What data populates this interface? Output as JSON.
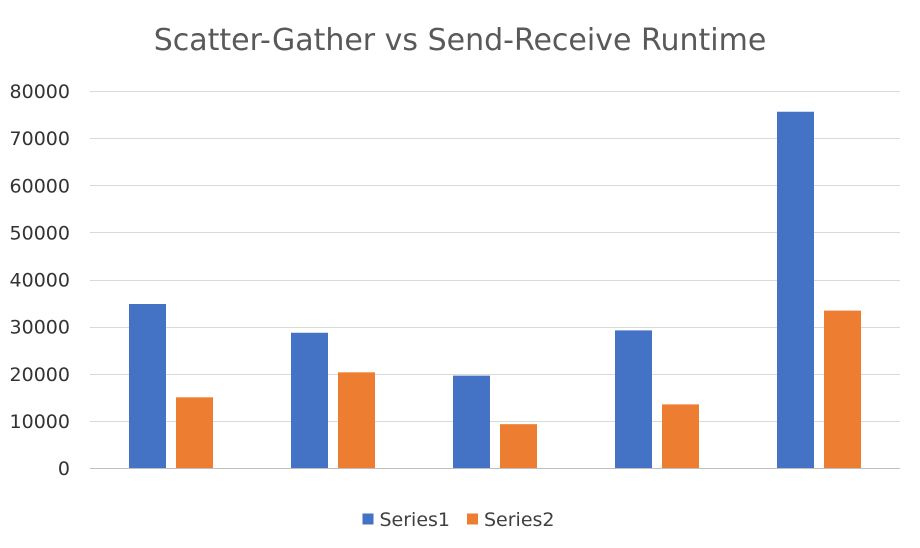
{
  "chart_data": {
    "type": "bar",
    "title": "Scatter-Gather vs Send-Receive Runtime",
    "xlabel": "",
    "ylabel": "",
    "categories": [
      "",
      "",
      "",
      "",
      ""
    ],
    "ylim": [
      0,
      80000
    ],
    "yticks": [
      0,
      10000,
      20000,
      30000,
      40000,
      50000,
      60000,
      70000,
      80000
    ],
    "grid": true,
    "legend": "bottom",
    "series": [
      {
        "name": "Series1",
        "color": "#4472C4",
        "values": [
          34800,
          28700,
          19600,
          29200,
          75600
        ]
      },
      {
        "name": "Series2",
        "color": "#ED7D31",
        "values": [
          15000,
          20300,
          9300,
          13500,
          33400
        ]
      }
    ]
  }
}
